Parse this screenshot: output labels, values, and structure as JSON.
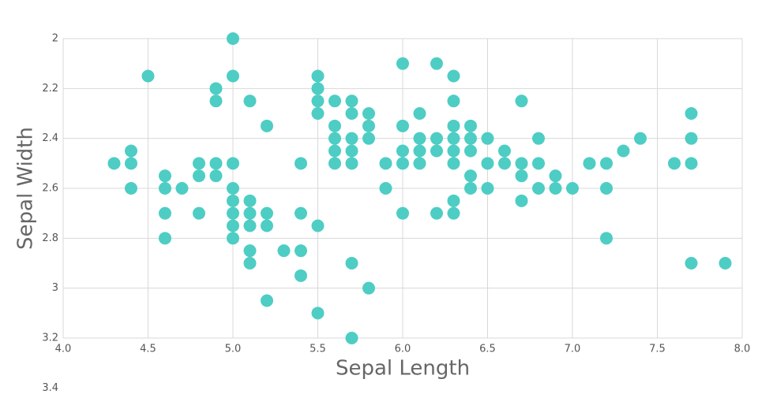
{
  "chart_data": {
    "type": "scatter",
    "x_label": "Sepal Length",
    "y_label": "Sepal Width",
    "color": "#4ecdc4",
    "grid": true,
    "y_reversed": true,
    "xlim": [
      4,
      8
    ],
    "ylim": [
      2,
      3.2
    ],
    "xticks": [
      {
        "value": 4,
        "label": "4.0"
      },
      4.5,
      {
        "value": 5,
        "label": "5.0"
      },
      5.5,
      {
        "value": 6,
        "label": "6.0"
      },
      6.5,
      {
        "value": 7,
        "label": "7.0"
      },
      7.5,
      {
        "value": 8,
        "label": "8.0"
      }
    ],
    "yticks": [
      2,
      2.2,
      2.4,
      2.6,
      2.8,
      3,
      3.2,
      3.4
    ],
    "x": [
      5.0,
      6.0,
      6.2,
      4.5,
      5.0,
      5.5,
      6.3,
      4.9,
      5.5,
      4.9,
      5.1,
      5.5,
      5.6,
      5.7,
      6.3,
      6.7,
      5.5,
      5.7,
      5.8,
      6.1,
      7.7,
      5.2,
      5.6,
      5.8,
      6.0,
      6.3,
      6.4,
      5.6,
      5.7,
      5.8,
      6.1,
      6.2,
      6.3,
      6.4,
      6.5,
      6.8,
      7.4,
      7.7,
      4.4,
      5.6,
      5.7,
      6.0,
      6.1,
      6.2,
      6.3,
      6.4,
      6.6,
      7.3,
      4.3,
      4.4,
      4.8,
      4.9,
      5.0,
      5.4,
      5.6,
      5.7,
      5.9,
      6.0,
      6.1,
      6.3,
      6.5,
      6.6,
      6.7,
      6.8,
      7.1,
      7.2,
      7.6,
      7.7,
      4.6,
      4.8,
      4.9,
      6.4,
      6.7,
      6.9,
      4.4,
      4.6,
      4.7,
      5.0,
      5.9,
      6.4,
      6.5,
      6.8,
      6.9,
      7.0,
      7.2,
      5.0,
      5.1,
      6.3,
      6.7,
      4.6,
      4.8,
      5.0,
      5.1,
      5.2,
      5.4,
      6.0,
      6.2,
      6.3,
      5.0,
      5.1,
      5.2,
      5.5,
      4.6,
      5.0,
      7.2,
      5.1,
      5.3,
      5.4,
      5.1,
      5.7,
      7.7,
      7.9,
      5.4,
      5.8,
      5.2,
      5.5,
      5.7
    ],
    "y": [
      2.0,
      2.1,
      2.1,
      2.15,
      2.15,
      2.15,
      2.15,
      2.2,
      2.2,
      2.25,
      2.25,
      2.25,
      2.25,
      2.25,
      2.25,
      2.25,
      2.3,
      2.3,
      2.3,
      2.3,
      2.3,
      2.35,
      2.35,
      2.35,
      2.35,
      2.35,
      2.35,
      2.4,
      2.4,
      2.4,
      2.4,
      2.4,
      2.4,
      2.4,
      2.4,
      2.4,
      2.4,
      2.4,
      2.45,
      2.45,
      2.45,
      2.45,
      2.45,
      2.45,
      2.45,
      2.45,
      2.45,
      2.45,
      2.5,
      2.5,
      2.5,
      2.5,
      2.5,
      2.5,
      2.5,
      2.5,
      2.5,
      2.5,
      2.5,
      2.5,
      2.5,
      2.5,
      2.5,
      2.5,
      2.5,
      2.5,
      2.5,
      2.5,
      2.55,
      2.55,
      2.55,
      2.55,
      2.55,
      2.55,
      2.6,
      2.6,
      2.6,
      2.6,
      2.6,
      2.6,
      2.6,
      2.6,
      2.6,
      2.6,
      2.6,
      2.65,
      2.65,
      2.65,
      2.65,
      2.7,
      2.7,
      2.7,
      2.7,
      2.7,
      2.7,
      2.7,
      2.7,
      2.7,
      2.75,
      2.75,
      2.75,
      2.75,
      2.8,
      2.8,
      2.8,
      2.85,
      2.85,
      2.85,
      2.9,
      2.9,
      2.9,
      2.9,
      2.95,
      3.0,
      3.05,
      3.1,
      3.2
    ]
  }
}
